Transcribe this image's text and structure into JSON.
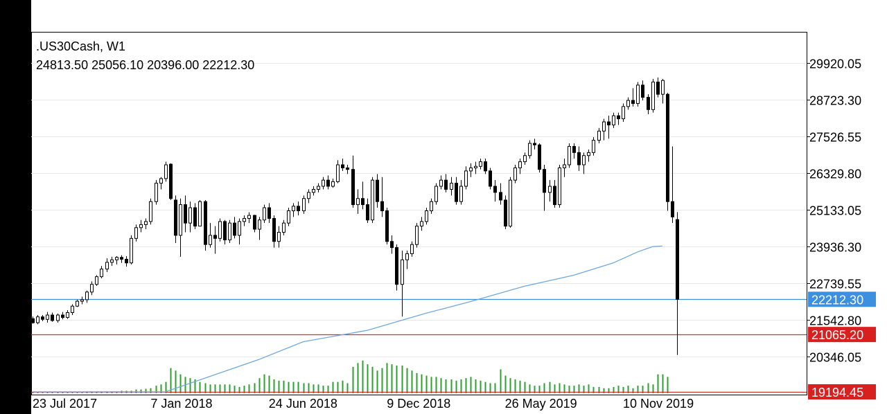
{
  "header": {
    "symbol_line": ".US30Cash, W1",
    "ohlc_line": "24813.50 25056.10 20396.00 22212.30"
  },
  "colors": {
    "background": "#ffffff",
    "candle": "#000000",
    "ma_line": "#6fa8dc",
    "volume": "#2ea02e",
    "current_price": "#3d8fe0",
    "level_line": "#c0392b",
    "level_box": "#d82020"
  },
  "chart_data": {
    "type": "candlestick",
    "symbol": ".US30Cash",
    "timeframe": "W1",
    "last_bar": {
      "open": 24813.5,
      "high": 25056.1,
      "low": 20396.0,
      "close": 22212.3
    },
    "y_ticks": [
      29920.05,
      28723.3,
      27526.55,
      26329.8,
      25133.05,
      23936.3,
      22739.55,
      21542.8,
      20346.05
    ],
    "y_range": [
      19194.45,
      31000
    ],
    "x_tick_labels": [
      "23 Jul 2017",
      "7 Jan 2018",
      "24 Jun 2018",
      "9 Dec 2018",
      "26 May 2019",
      "10 Nov 2019"
    ],
    "x_tick_bar_index": [
      0,
      24,
      48,
      72,
      96,
      120
    ],
    "markers": [
      {
        "label": "22212.30",
        "value": 22212.3,
        "kind": "current"
      },
      {
        "label": "21065.20",
        "value": 21065.2,
        "kind": "level"
      },
      {
        "label": "19194.45",
        "value": 19194.45,
        "kind": "level"
      }
    ],
    "candles": [
      [
        21580,
        21650,
        21420,
        21450
      ],
      [
        21450,
        21700,
        21400,
        21640
      ],
      [
        21640,
        21700,
        21500,
        21560
      ],
      [
        21560,
        21800,
        21450,
        21700
      ],
      [
        21700,
        21780,
        21480,
        21520
      ],
      [
        21520,
        21750,
        21450,
        21700
      ],
      [
        21700,
        21800,
        21560,
        21620
      ],
      [
        21620,
        21860,
        21570,
        21780
      ],
      [
        21780,
        22050,
        21700,
        21990
      ],
      [
        21990,
        22200,
        21960,
        22150
      ],
      [
        22150,
        22300,
        22050,
        22200
      ],
      [
        22200,
        22500,
        22100,
        22450
      ],
      [
        22450,
        22800,
        22350,
        22700
      ],
      [
        22700,
        23000,
        22650,
        22950
      ],
      [
        22950,
        23300,
        22900,
        23200
      ],
      [
        23200,
        23550,
        23100,
        23420
      ],
      [
        23420,
        23600,
        23300,
        23500
      ],
      [
        23500,
        23620,
        23350,
        23580
      ],
      [
        23580,
        23650,
        23400,
        23520
      ],
      [
        23520,
        23620,
        23280,
        23400
      ],
      [
        23400,
        24300,
        23350,
        24200
      ],
      [
        24200,
        24650,
        24100,
        24550
      ],
      [
        24550,
        24800,
        24400,
        24650
      ],
      [
        24650,
        24850,
        24500,
        24750
      ],
      [
        24750,
        25500,
        24650,
        25400
      ],
      [
        25400,
        26100,
        25300,
        26000
      ],
      [
        26000,
        26200,
        25800,
        26150
      ],
      [
        26150,
        26700,
        26050,
        26600
      ],
      [
        26620,
        26650,
        25450,
        25500
      ],
      [
        25450,
        25600,
        24050,
        24300
      ],
      [
        24300,
        25500,
        23600,
        25300
      ],
      [
        25300,
        25600,
        24400,
        24700
      ],
      [
        24700,
        25400,
        24400,
        25200
      ],
      [
        25200,
        25350,
        24500,
        24600
      ],
      [
        24600,
        25450,
        24600,
        25400
      ],
      [
        25400,
        25450,
        23800,
        24000
      ],
      [
        24000,
        24700,
        23900,
        24300
      ],
      [
        24300,
        24600,
        23700,
        24200
      ],
      [
        24200,
        24850,
        24100,
        24750
      ],
      [
        24750,
        24800,
        24000,
        24150
      ],
      [
        24150,
        24800,
        24050,
        24700
      ],
      [
        24700,
        24900,
        24200,
        24300
      ],
      [
        24300,
        24850,
        24000,
        24750
      ],
      [
        24750,
        24950,
        24600,
        24850
      ],
      [
        24850,
        25050,
        24700,
        24950
      ],
      [
        24950,
        24970,
        24400,
        24500
      ],
      [
        24500,
        24900,
        24150,
        24800
      ],
      [
        24800,
        25300,
        24700,
        25200
      ],
      [
        25200,
        25350,
        24700,
        24850
      ],
      [
        24850,
        24950,
        23900,
        24100
      ],
      [
        24100,
        24600,
        23900,
        24400
      ],
      [
        24400,
        24800,
        24300,
        24700
      ],
      [
        24700,
        25200,
        24600,
        25100
      ],
      [
        25100,
        25350,
        24900,
        25250
      ],
      [
        25250,
        25400,
        24950,
        25100
      ],
      [
        25100,
        25600,
        25000,
        25500
      ],
      [
        25500,
        25800,
        25350,
        25700
      ],
      [
        25700,
        25900,
        25600,
        25800
      ],
      [
        25800,
        26000,
        25700,
        25900
      ],
      [
        25900,
        26200,
        25800,
        26100
      ],
      [
        26100,
        26250,
        25800,
        25900
      ],
      [
        25900,
        26150,
        25850,
        26050
      ],
      [
        26050,
        26750,
        26000,
        26600
      ],
      [
        26600,
        26800,
        26400,
        26500
      ],
      [
        26500,
        26600,
        26300,
        26450
      ],
      [
        26450,
        26900,
        25200,
        25300
      ],
      [
        25300,
        25800,
        25000,
        25500
      ],
      [
        25500,
        26050,
        25150,
        25300
      ],
      [
        25300,
        25500,
        24700,
        24800
      ],
      [
        24800,
        26200,
        24700,
        26100
      ],
      [
        26100,
        26300,
        25200,
        25400
      ],
      [
        25400,
        26200,
        24900,
        25100
      ],
      [
        25100,
        25200,
        24000,
        24100
      ],
      [
        24100,
        24300,
        23700,
        23900
      ],
      [
        23900,
        24000,
        22500,
        22700
      ],
      [
        22700,
        23800,
        21650,
        23500
      ],
      [
        23500,
        23800,
        23200,
        23700
      ],
      [
        23700,
        24100,
        23600,
        24000
      ],
      [
        24000,
        24700,
        23900,
        24600
      ],
      [
        24600,
        24900,
        24450,
        24750
      ],
      [
        24750,
        25200,
        24650,
        25100
      ],
      [
        25100,
        25500,
        25000,
        25400
      ],
      [
        25400,
        26000,
        25300,
        25900
      ],
      [
        25900,
        26250,
        25800,
        26100
      ],
      [
        26100,
        26300,
        25700,
        25800
      ],
      [
        25800,
        26200,
        25600,
        26000
      ],
      [
        26000,
        26200,
        25300,
        25400
      ],
      [
        25400,
        26100,
        25300,
        25900
      ],
      [
        25900,
        26550,
        25800,
        26400
      ],
      [
        26400,
        26650,
        26200,
        26500
      ],
      [
        26500,
        26700,
        26300,
        26550
      ],
      [
        26550,
        26800,
        26450,
        26700
      ],
      [
        26700,
        26800,
        26300,
        26400
      ],
      [
        26400,
        26500,
        25800,
        25900
      ],
      [
        25900,
        26100,
        25400,
        25700
      ],
      [
        25700,
        26000,
        25300,
        25450
      ],
      [
        25450,
        25600,
        24500,
        24600
      ],
      [
        24600,
        26200,
        24550,
        26100
      ],
      [
        26100,
        26600,
        26000,
        26500
      ],
      [
        26500,
        26800,
        26300,
        26700
      ],
      [
        26700,
        27000,
        26600,
        26900
      ],
      [
        26900,
        27400,
        26800,
        27300
      ],
      [
        27300,
        27450,
        27100,
        27250
      ],
      [
        27250,
        27300,
        26350,
        26450
      ],
      [
        26450,
        26600,
        25100,
        25700
      ],
      [
        25700,
        26100,
        25400,
        25900
      ],
      [
        25900,
        26100,
        25200,
        25300
      ],
      [
        25300,
        26600,
        25200,
        26500
      ],
      [
        26500,
        26800,
        26200,
        26600
      ],
      [
        26600,
        27300,
        26500,
        27200
      ],
      [
        27200,
        27300,
        26800,
        27000
      ],
      [
        27000,
        27200,
        26400,
        26600
      ],
      [
        26600,
        27000,
        26300,
        26900
      ],
      [
        26900,
        27100,
        26700,
        27000
      ],
      [
        27000,
        27500,
        26900,
        27400
      ],
      [
        27400,
        27800,
        27300,
        27700
      ],
      [
        27700,
        28100,
        27400,
        28000
      ],
      [
        28000,
        28200,
        27450,
        27900
      ],
      [
        27900,
        28300,
        27800,
        28200
      ],
      [
        28200,
        28300,
        27900,
        28100
      ],
      [
        28100,
        28600,
        28000,
        28500
      ],
      [
        28500,
        28800,
        28400,
        28700
      ],
      [
        28700,
        29100,
        28500,
        28600
      ],
      [
        28600,
        29300,
        28500,
        29200
      ],
      [
        29200,
        29350,
        28700,
        28800
      ],
      [
        28800,
        28900,
        28250,
        28400
      ],
      [
        28400,
        29400,
        28300,
        29300
      ],
      [
        29300,
        29450,
        28800,
        28900
      ],
      [
        28900,
        29400,
        28600,
        29350
      ],
      [
        28900,
        28950,
        25100,
        25400
      ],
      [
        25400,
        27200,
        24700,
        24900
      ],
      [
        24813.5,
        25056.1,
        20396,
        22212.3
      ]
    ],
    "ma_values": [
      19194.45,
      19194.45,
      19194.45,
      19194.45,
      19194.45,
      19194.45,
      19194.45,
      19194.45,
      19194.45,
      19194.45,
      19194.45,
      19194.45,
      19194.45,
      19194.45,
      19194.45,
      19194.45,
      19194.45,
      19194.45,
      19194.45,
      19194.45,
      19194.45,
      19194.45,
      19194.45,
      19194.45,
      19194.45,
      19194.45,
      19194.45,
      19194.45,
      19194.45,
      19194.45,
      19194.45,
      19194.45,
      19194.45,
      19194.45,
      19194.45,
      19194.45,
      19194.45,
      19194.45,
      19194.45,
      19194.45,
      19194.45,
      19194.45,
      19194.45,
      19194.45,
      19194.45,
      19194.45,
      19194.45,
      19194.45,
      19194.45,
      19194.45,
      19194.45,
      19194.45,
      19194.45,
      19194.45,
      19194.45,
      19194.45,
      19194.45,
      19194.45,
      19194.45,
      19194.45,
      19194.45,
      19194.45,
      19194.45,
      19194.45,
      19194.45,
      19194.45,
      19194.45,
      19194.45,
      19194.45,
      19194.45,
      19194.45,
      19194.45,
      19194.45,
      19194.45,
      19194.45,
      19194.45,
      19194.45,
      19194.45,
      19194.45,
      19194.45,
      19194.45,
      19194.45,
      19194.45,
      19194.45,
      19194.45,
      19194.45,
      19194.45,
      19194.45,
      19194.45,
      19194.45,
      19194.45,
      19194.45,
      19194.45,
      19194.45,
      19194.45,
      19194.45,
      19194.45,
      19194.45,
      19194.45,
      19194.45,
      19194.45,
      19194.45,
      19194.45,
      19194.45,
      19194.45,
      19194.45,
      19194.45,
      19194.45,
      19194.45,
      19194.45,
      19194.45,
      19194.45,
      19194.45,
      19194.45,
      19194.45,
      19194.45,
      19194.45,
      19194.45,
      19194.45,
      19194.45,
      19194.45,
      19194.45,
      19194.45,
      19194.45,
      19194.45,
      19194.45,
      19194.45,
      19194.45
    ],
    "ma_anchor": [
      [
        0,
        19194.45
      ],
      [
        27,
        19194.45
      ],
      [
        35,
        19640
      ],
      [
        46,
        20250
      ],
      [
        55,
        20830
      ],
      [
        68,
        21200
      ],
      [
        74,
        21480
      ],
      [
        80,
        21760
      ],
      [
        89,
        22140
      ],
      [
        100,
        22640
      ],
      [
        110,
        23000
      ],
      [
        118,
        23400
      ],
      [
        123,
        23760
      ],
      [
        126,
        23930
      ],
      [
        128,
        23950
      ]
    ],
    "volume": [
      2,
      2,
      2,
      2,
      2,
      2,
      2,
      2,
      2,
      2,
      2,
      3,
      3,
      3,
      3,
      3,
      3,
      3,
      4,
      4,
      4,
      6,
      6,
      7,
      8,
      12,
      14,
      18,
      40,
      36,
      30,
      26,
      24,
      22,
      18,
      16,
      14,
      14,
      14,
      14,
      14,
      12,
      10,
      12,
      14,
      16,
      24,
      30,
      28,
      22,
      20,
      20,
      18,
      18,
      18,
      16,
      16,
      14,
      14,
      12,
      12,
      18,
      18,
      20,
      16,
      42,
      48,
      52,
      46,
      42,
      36,
      40,
      48,
      46,
      44,
      44,
      40,
      36,
      32,
      30,
      28,
      26,
      26,
      24,
      22,
      22,
      20,
      22,
      24,
      26,
      22,
      20,
      18,
      16,
      16,
      38,
      28,
      24,
      22,
      20,
      18,
      14,
      12,
      12,
      16,
      18,
      14,
      16,
      14,
      12,
      12,
      14,
      12,
      14,
      10,
      10,
      8,
      8,
      10,
      12,
      10,
      12,
      8,
      12,
      12,
      16,
      14,
      30,
      30,
      26
    ],
    "volume_max": 55
  }
}
